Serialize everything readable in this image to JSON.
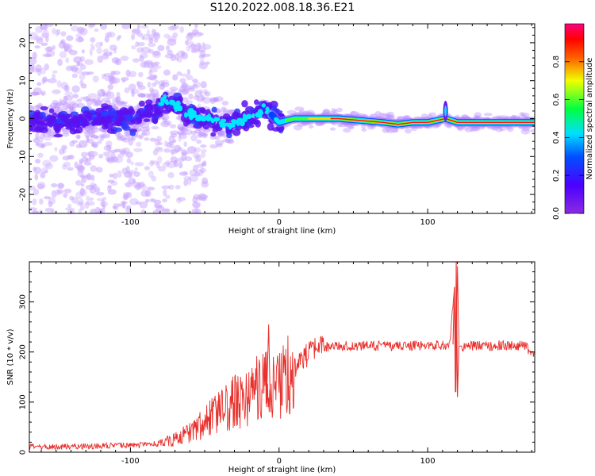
{
  "title": "S120.2022.008.18.36.E21",
  "colors": {
    "snr_line": "#e8302c",
    "frame": "#000000"
  },
  "chart_data": [
    {
      "type": "heatmap",
      "xlabel": "Height of straight line (km)",
      "ylabel": "Frequency (Hz)",
      "xlim": [
        -168,
        172
      ],
      "ylim": [
        -25,
        25
      ],
      "xticks": [
        -100,
        0,
        100
      ],
      "yticks": [
        -20,
        -10,
        0,
        10,
        20
      ],
      "colorbar": {
        "label": "Normalized spectral amplitude",
        "range": [
          0.0,
          1.0
        ],
        "ticks": [
          "0.0",
          "0.2",
          "0.4",
          "0.6",
          "0.8"
        ],
        "colormap": "rainbow (purple → blue → cyan → green → yellow → red → magenta)"
      },
      "signal_track": {
        "description_points_x_km": [
          -165,
          -140,
          -120,
          -100,
          -80,
          -78,
          -60,
          -45,
          -35,
          -15,
          -10,
          0,
          10,
          40,
          70,
          80,
          90,
          100,
          112,
          120,
          170
        ],
        "center_frequency_hz": [
          0,
          -1,
          0,
          0,
          3,
          5,
          1,
          0,
          -2,
          1,
          3,
          -1,
          0,
          0,
          -1,
          -1.5,
          -1,
          -1,
          0,
          -1,
          -1
        ]
      }
    },
    {
      "type": "line",
      "xlabel": "Height of straight line (km)",
      "ylabel": "SNR (10 * v/v)",
      "xlim": [
        -168,
        172
      ],
      "ylim": [
        0,
        380
      ],
      "xticks": [
        -100,
        0,
        100
      ],
      "yticks": [
        0,
        100,
        200,
        300
      ],
      "series": [
        {
          "x": [
            -168,
            -150,
            -130,
            -110,
            -90,
            -80,
            -70,
            -60,
            -50,
            -40,
            -30,
            -20,
            -15,
            -10,
            -5,
            0,
            5,
            10,
            15,
            20,
            25,
            30,
            40,
            60,
            80,
            100,
            115,
            118,
            119,
            120,
            121,
            122,
            130,
            150,
            165,
            172
          ],
          "y": [
            10,
            11,
            12,
            13,
            14,
            18,
            25,
            40,
            60,
            80,
            100,
            110,
            130,
            140,
            120,
            140,
            150,
            170,
            185,
            195,
            205,
            210,
            212,
            212,
            212,
            213,
            215,
            330,
            120,
            380,
            210,
            212,
            212,
            213,
            212,
            195
          ]
        }
      ]
    }
  ]
}
